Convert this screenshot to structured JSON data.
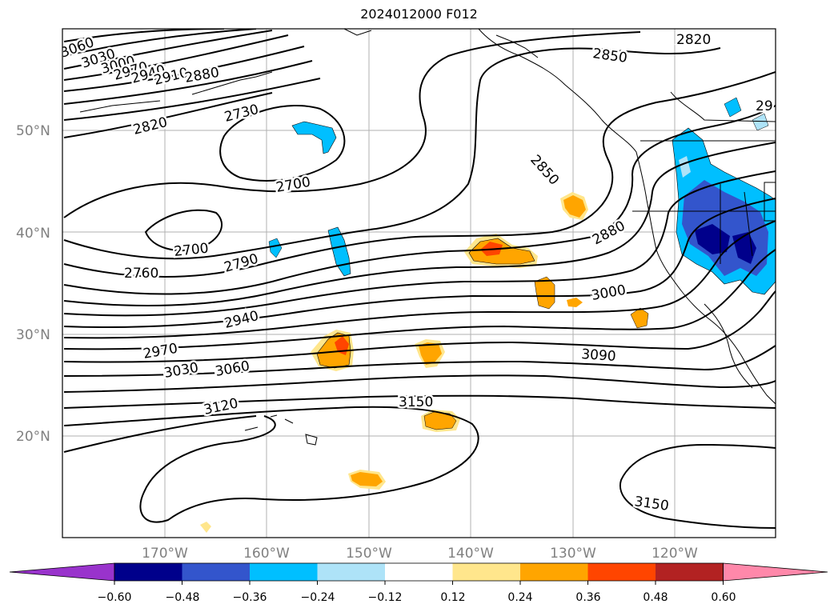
{
  "title": "2024012000 F012",
  "map": {
    "lat_labels": [
      "20°N",
      "30°N",
      "40°N",
      "50°N"
    ],
    "lon_labels": [
      "170°W",
      "160°W",
      "150°W",
      "140°W",
      "130°W",
      "120°W"
    ],
    "gridlines": true
  },
  "contour_labels": [
    "3060",
    "3030",
    "3000",
    "2970",
    "2940",
    "2910",
    "2880",
    "2820",
    "2730",
    "2700",
    "2700",
    "2760",
    "2790",
    "2940",
    "2970",
    "3030",
    "3060",
    "3120",
    "3150",
    "3090",
    "3000",
    "2880",
    "2850",
    "2850",
    "2820",
    "29",
    "3150"
  ],
  "colorbar": {
    "tick_labels": [
      "−0.60",
      "−0.48",
      "−0.36",
      "−0.24",
      "−0.12",
      "0.12",
      "0.24",
      "0.36",
      "0.48",
      "0.60"
    ],
    "colors": [
      "#9933cc",
      "#00008b",
      "#3355cc",
      "#00bfff",
      "#aee3f8",
      "#ffffff",
      "#ffe68c",
      "#ffa500",
      "#ff4500",
      "#b22222",
      "#ff88aa"
    ]
  }
}
